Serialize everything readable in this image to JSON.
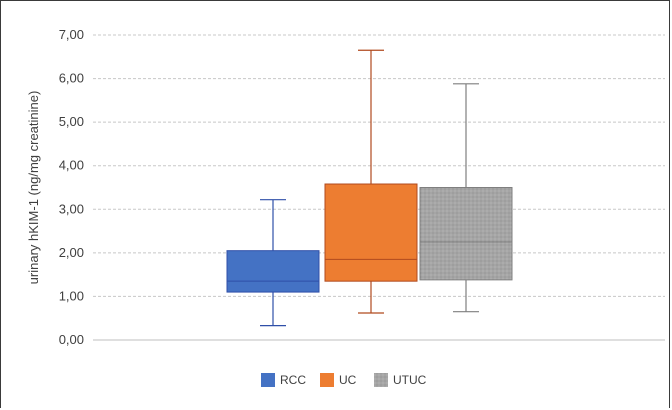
{
  "chart_data": {
    "type": "box",
    "ylabel": "urinary hKIM-1 (ng/mg creatinine)",
    "ylim": [
      0,
      7
    ],
    "yticks": [
      "0,00",
      "1,00",
      "2,00",
      "3,00",
      "4,00",
      "5,00",
      "6,00",
      "7,00"
    ],
    "grid": true,
    "legend_position": "bottom",
    "series": [
      {
        "name": "RCC",
        "color": "#4472c4",
        "whisker_color": "#2f4fa8",
        "pattern": "solid",
        "min": 0.33,
        "q1": 1.1,
        "median": 1.35,
        "q3": 2.05,
        "max": 3.22
      },
      {
        "name": "UC",
        "color": "#ed7d31",
        "whisker_color": "#b04a1e",
        "pattern": "solid",
        "min": 0.62,
        "q1": 1.35,
        "median": 1.85,
        "q3": 3.58,
        "max": 6.65
      },
      {
        "name": "UTUC",
        "color": "#a5a5a5",
        "whisker_color": "#7f7f7f",
        "pattern": "dotted",
        "min": 0.65,
        "q1": 1.38,
        "median": 2.25,
        "q3": 3.5,
        "max": 5.88
      }
    ]
  }
}
